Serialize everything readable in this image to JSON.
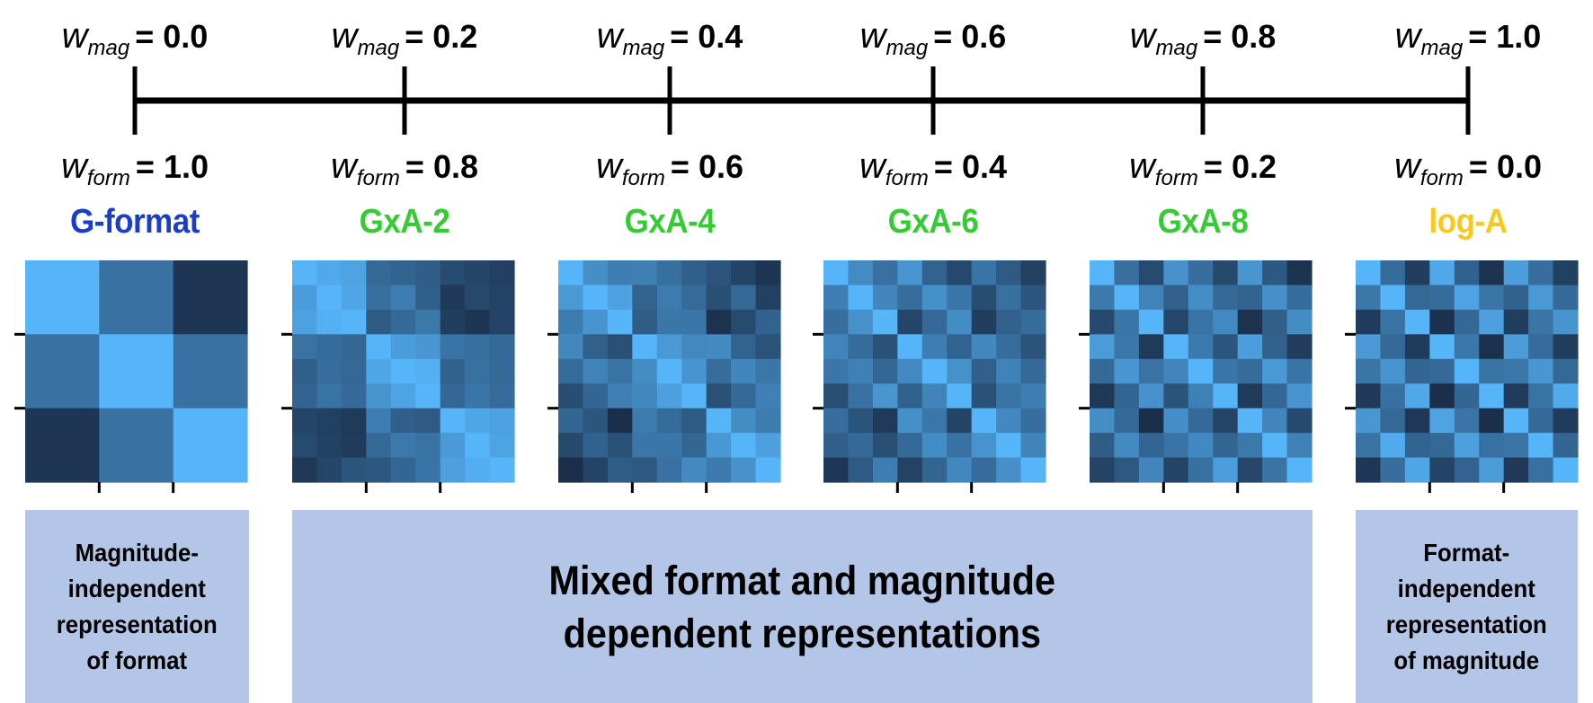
{
  "colors": {
    "g_format": "#1a3ecb",
    "gxa": "#33cc33",
    "log_a": "#f8c91a",
    "box_fill": "#b3c6e7",
    "heat_low": "#1b2f4b",
    "heat_high": "#56b4f9"
  },
  "axis_symbols": {
    "w": "w",
    "mag": "mag",
    "form": "form",
    "equals": "="
  },
  "timeline": [
    {
      "name": "G-format",
      "w_mag": "0.0",
      "w_form": "1.0",
      "color_key": "g_format",
      "grid": 3
    },
    {
      "name": "GxA-2",
      "w_mag": "0.2",
      "w_form": "0.8",
      "color_key": "gxa",
      "grid": 9
    },
    {
      "name": "GxA-4",
      "w_mag": "0.4",
      "w_form": "0.6",
      "color_key": "gxa",
      "grid": 9
    },
    {
      "name": "GxA-6",
      "w_mag": "0.6",
      "w_form": "0.4",
      "color_key": "gxa",
      "grid": 9
    },
    {
      "name": "GxA-8",
      "w_mag": "0.8",
      "w_form": "0.2",
      "color_key": "gxa",
      "grid": 9
    },
    {
      "name": "log-A",
      "w_mag": "1.0",
      "w_form": "0.0",
      "color_key": "log_a",
      "grid": 9
    }
  ],
  "boxes": {
    "left": [
      "Magnitude-",
      "independent",
      "representation",
      "of format"
    ],
    "middle": [
      "Mixed format and magnitude",
      "dependent representations"
    ],
    "right": [
      "Format-",
      "independent",
      "representation",
      "of magnitude"
    ]
  }
}
